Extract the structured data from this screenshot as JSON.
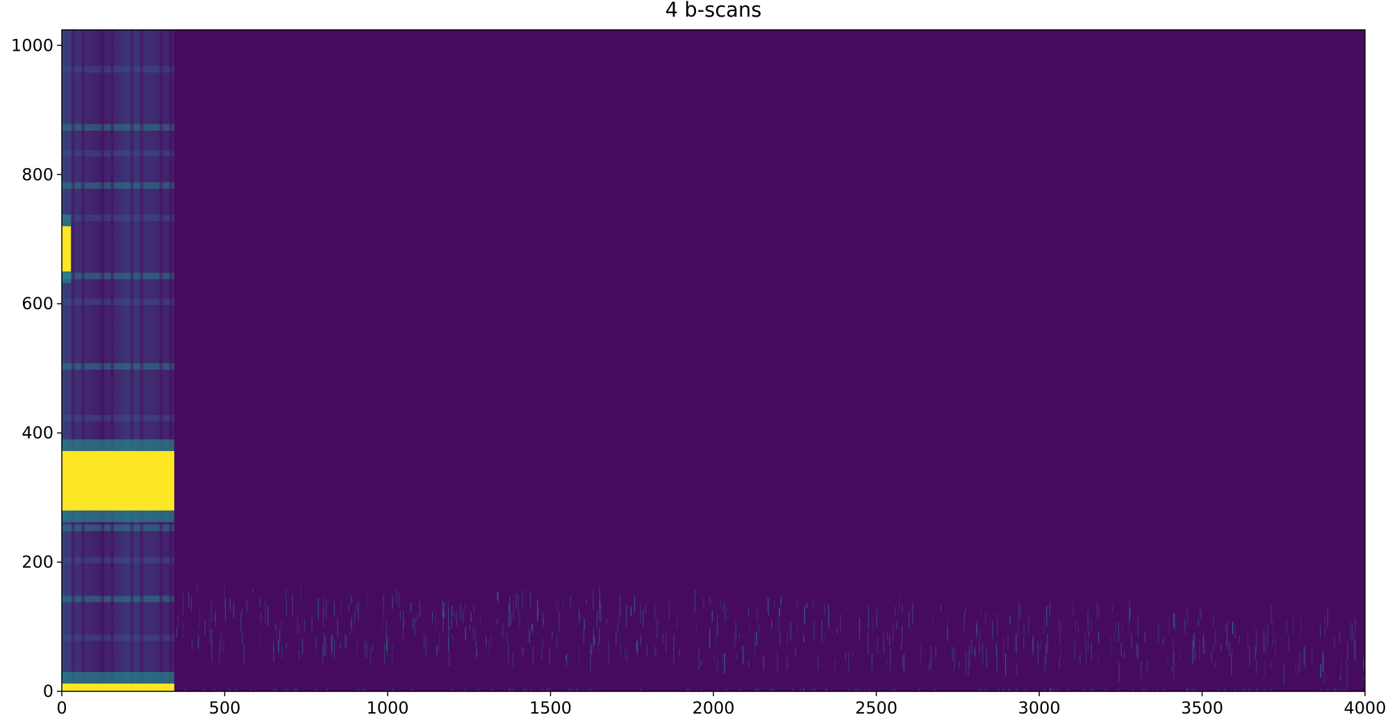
{
  "chart_data": {
    "type": "heatmap",
    "title": "4 b-scans",
    "xlabel": "",
    "ylabel": "",
    "xlim": [
      0,
      4000
    ],
    "ylim": [
      0,
      1024
    ],
    "x_ticks": [
      0,
      500,
      1000,
      1500,
      2000,
      2500,
      3000,
      3500,
      4000
    ],
    "y_ticks": [
      0,
      200,
      400,
      600,
      800,
      1000
    ],
    "x_tick_labels": [
      "0",
      "500",
      "1000",
      "1500",
      "2000",
      "2500",
      "3000",
      "3500",
      "4000"
    ],
    "y_tick_labels": [
      "0",
      "200",
      "400",
      "600",
      "800",
      "1000"
    ],
    "colormap": "viridis",
    "colors": {
      "background": "#460b5e",
      "high": "#fde725",
      "mid": "#21918c",
      "mid_dark": "#3b528b"
    },
    "regions": [
      {
        "name": "bright-band",
        "x": [
          0,
          345
        ],
        "y": [
          280,
          372
        ],
        "level": 1.0
      },
      {
        "name": "bright-base",
        "x": [
          0,
          345
        ],
        "y": [
          0,
          12
        ],
        "level": 1.0
      },
      {
        "name": "bright-spot",
        "x": [
          0,
          28
        ],
        "y": [
          650,
          720
        ],
        "level": 1.0
      },
      {
        "name": "noise-band",
        "x": [
          345,
          4000
        ],
        "y": [
          60,
          160
        ],
        "level": 0.25
      }
    ]
  }
}
